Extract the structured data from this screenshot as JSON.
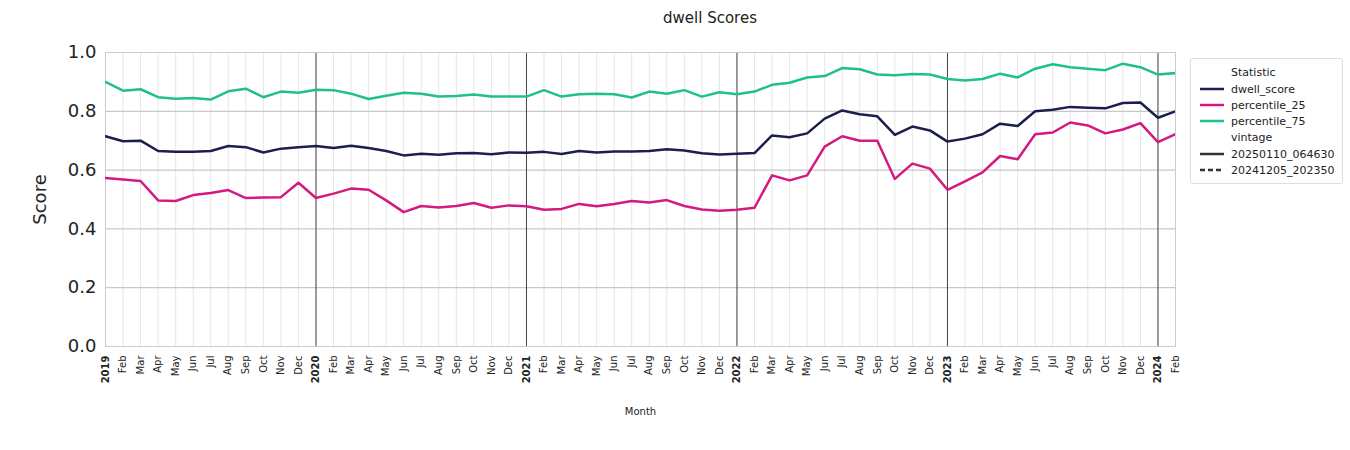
{
  "chart_data": {
    "type": "line",
    "title": "dwell Scores",
    "x_label": "Month",
    "y_label": "Score",
    "categories": [
      "2019",
      "Feb",
      "Mar",
      "Apr",
      "May",
      "Jun",
      "Jul",
      "Aug",
      "Sep",
      "Oct",
      "Nov",
      "Dec",
      "2020",
      "Feb",
      "Mar",
      "Apr",
      "May",
      "Jun",
      "Jul",
      "Aug",
      "Sep",
      "Oct",
      "Nov",
      "Dec",
      "2021",
      "Feb",
      "Mar",
      "Apr",
      "May",
      "Jun",
      "Jul",
      "Aug",
      "Sep",
      "Oct",
      "Nov",
      "Dec",
      "2022",
      "Feb",
      "Mar",
      "Apr",
      "May",
      "Jun",
      "Jul",
      "Aug",
      "Sep",
      "Oct",
      "Nov",
      "Dec",
      "2023",
      "Feb",
      "Mar",
      "Apr",
      "May",
      "Jun",
      "Jul",
      "Aug",
      "Sep",
      "Oct",
      "Nov",
      "Dec",
      "2024",
      "Feb"
    ],
    "series": [
      {
        "name": "dwell_score",
        "color": "#1b1f4f",
        "values": [
          0.715,
          0.698,
          0.7,
          0.665,
          0.662,
          0.662,
          0.665,
          0.682,
          0.678,
          0.66,
          0.673,
          0.678,
          0.682,
          0.675,
          0.683,
          0.675,
          0.665,
          0.65,
          0.656,
          0.652,
          0.657,
          0.658,
          0.654,
          0.66,
          0.659,
          0.662,
          0.655,
          0.665,
          0.66,
          0.663,
          0.663,
          0.665,
          0.671,
          0.667,
          0.657,
          0.653,
          0.656,
          0.658,
          0.718,
          0.712,
          0.725,
          0.775,
          0.803,
          0.79,
          0.783,
          0.72,
          0.748,
          0.735,
          0.697,
          0.707,
          0.722,
          0.758,
          0.75,
          0.8,
          0.805,
          0.815,
          0.812,
          0.81,
          0.828,
          0.83,
          0.778,
          0.8
        ]
      },
      {
        "name": "percentile_25",
        "color": "#d4197f",
        "values": [
          0.573,
          0.568,
          0.563,
          0.497,
          0.495,
          0.515,
          0.522,
          0.532,
          0.505,
          0.507,
          0.508,
          0.557,
          0.505,
          0.52,
          0.537,
          0.533,
          0.497,
          0.457,
          0.478,
          0.473,
          0.478,
          0.488,
          0.472,
          0.48,
          0.477,
          0.465,
          0.468,
          0.485,
          0.477,
          0.485,
          0.495,
          0.49,
          0.498,
          0.478,
          0.466,
          0.462,
          0.465,
          0.472,
          0.582,
          0.565,
          0.582,
          0.68,
          0.715,
          0.7,
          0.7,
          0.57,
          0.622,
          0.605,
          0.533,
          0.562,
          0.592,
          0.648,
          0.637,
          0.722,
          0.728,
          0.762,
          0.752,
          0.725,
          0.738,
          0.76,
          0.695,
          0.722
        ]
      },
      {
        "name": "percentile_75",
        "color": "#20c08a",
        "values": [
          0.9,
          0.87,
          0.875,
          0.848,
          0.843,
          0.845,
          0.84,
          0.868,
          0.877,
          0.848,
          0.867,
          0.863,
          0.873,
          0.872,
          0.86,
          0.842,
          0.853,
          0.863,
          0.86,
          0.85,
          0.852,
          0.857,
          0.85,
          0.85,
          0.85,
          0.872,
          0.85,
          0.858,
          0.86,
          0.858,
          0.847,
          0.867,
          0.86,
          0.872,
          0.85,
          0.865,
          0.858,
          0.867,
          0.89,
          0.897,
          0.915,
          0.92,
          0.947,
          0.943,
          0.925,
          0.923,
          0.927,
          0.925,
          0.91,
          0.905,
          0.91,
          0.928,
          0.915,
          0.945,
          0.96,
          0.95,
          0.945,
          0.94,
          0.962,
          0.95,
          0.925,
          0.93
        ]
      }
    ],
    "ylim": [
      0,
      1
    ],
    "yticks": [
      {
        "value": 0,
        "label": "0.0"
      },
      {
        "value": 0.2,
        "label": "0.2"
      },
      {
        "value": 0.4,
        "label": "0.4"
      },
      {
        "value": 0.6,
        "label": "0.6"
      },
      {
        "value": 0.8,
        "label": "0.8"
      },
      {
        "value": 1,
        "label": "1.0"
      }
    ],
    "grid": true,
    "legend": "upper right",
    "legend_title": "Statistic",
    "vintage_title": "vintage",
    "vintages": [
      {
        "name": "20250110_064630",
        "line_style": "solid"
      },
      {
        "name": "20241205_202350",
        "line_style": "dashed"
      }
    ]
  }
}
